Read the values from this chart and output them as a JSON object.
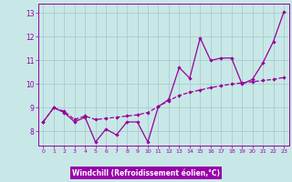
{
  "xlabel": "Windchill (Refroidissement éolien,°C)",
  "bg_color": "#c8e8e8",
  "line_color": "#990099",
  "grid_color": "#aacccc",
  "xlabel_bg": "#9900aa",
  "xlabel_fg": "#ffffff",
  "xlim": [
    -0.5,
    23.5
  ],
  "ylim": [
    7.4,
    13.4
  ],
  "xticks": [
    0,
    1,
    2,
    3,
    4,
    5,
    6,
    7,
    8,
    9,
    10,
    11,
    12,
    13,
    14,
    15,
    16,
    17,
    18,
    19,
    20,
    21,
    22,
    23
  ],
  "yticks": [
    8,
    9,
    10,
    11,
    12,
    13
  ],
  "series1_x": [
    0,
    1,
    2,
    3,
    4,
    5,
    6,
    7,
    8,
    9,
    10,
    11,
    12,
    13,
    14,
    15,
    16,
    17,
    18,
    19,
    20,
    21,
    22,
    23
  ],
  "series1_y": [
    8.4,
    9.0,
    8.8,
    8.4,
    8.6,
    7.55,
    8.1,
    7.85,
    8.4,
    8.4,
    7.55,
    9.05,
    9.35,
    10.7,
    10.25,
    11.95,
    11.0,
    11.1,
    11.1,
    10.0,
    10.2,
    10.9,
    11.8,
    13.05
  ],
  "series2_x": [
    0,
    1,
    2,
    3,
    4,
    5,
    6,
    7,
    8,
    9,
    10,
    11,
    12,
    13,
    14,
    15,
    16,
    17,
    18,
    19,
    20,
    21,
    22,
    23
  ],
  "series2_y": [
    8.4,
    9.0,
    8.85,
    8.5,
    8.65,
    8.5,
    8.55,
    8.6,
    8.65,
    8.7,
    8.8,
    9.05,
    9.3,
    9.52,
    9.65,
    9.75,
    9.85,
    9.93,
    10.0,
    10.05,
    10.1,
    10.15,
    10.2,
    10.28
  ]
}
